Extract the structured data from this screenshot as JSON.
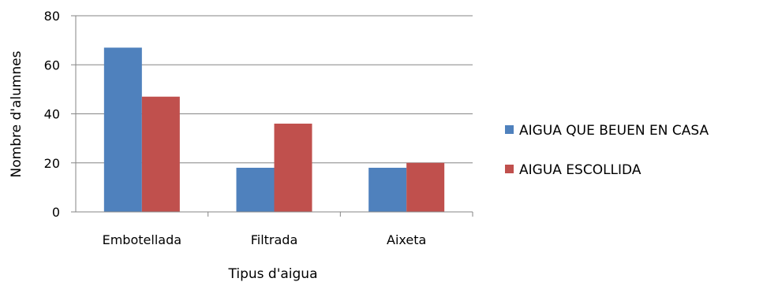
{
  "chart_data": {
    "type": "bar",
    "title": "",
    "xlabel": "Tipus d'aigua",
    "ylabel": "Nombre d'alumnes",
    "categories": [
      "Embotellada",
      "Filtrada",
      "Aixeta"
    ],
    "series": [
      {
        "name": "AIGUA QUE BEUEN EN CASA",
        "values": [
          67,
          18,
          18
        ],
        "color": "#4F81BD"
      },
      {
        "name": "AIGUA ESCOLLIDA",
        "values": [
          47,
          36,
          20
        ],
        "color": "#C0504D"
      }
    ],
    "ylim": [
      0,
      80
    ],
    "yticks": [
      "0",
      "20",
      "40",
      "60",
      "80"
    ],
    "grid": true,
    "legend_position": "right"
  }
}
